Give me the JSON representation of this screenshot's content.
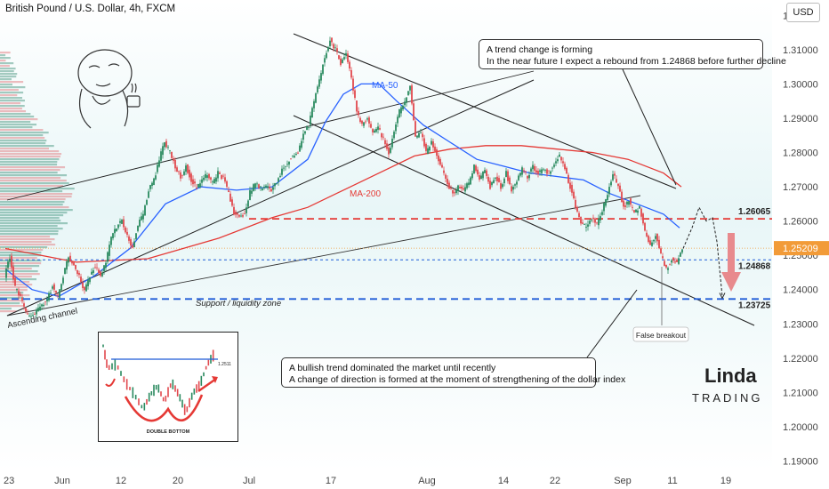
{
  "chart_data": {
    "type": "candlestick",
    "title": "British Pound / U.S. Dollar, 4h, FXCM",
    "currency": "USD",
    "x_ticks": [
      "23",
      "Jun",
      "12",
      "20",
      "Jul",
      "17",
      "Aug",
      "14",
      "22",
      "Sep",
      "11",
      "19"
    ],
    "y_ticks": [
      "1.32000",
      "1.31000",
      "1.30000",
      "1.29000",
      "1.28000",
      "1.27000",
      "1.26000",
      "1.25000",
      "1.24000",
      "1.23000",
      "1.22000",
      "1.21000",
      "1.20000",
      "1.19000"
    ],
    "ylim": [
      1.187,
      1.3245
    ],
    "current_price": "1.25209",
    "current_price_value": 1.25209,
    "levels": [
      {
        "label": "1.26065",
        "value": 1.26065,
        "style": "dashed",
        "color": "#e53935"
      },
      {
        "label": "1.24868",
        "value": 1.24868,
        "style": "dotted",
        "color": "#1e5bd8"
      },
      {
        "label": "1.23725",
        "value": 1.23725,
        "style": "dashed",
        "color": "#1e5bd8"
      }
    ],
    "ma_labels": {
      "ma50": "MA-50",
      "ma200": "MA-200"
    },
    "series": [
      {
        "name": "MA-50",
        "color": "#2962ff"
      },
      {
        "name": "MA-200",
        "color": "#e53935"
      }
    ],
    "ohlc_path": [
      [
        0,
        1.244
      ],
      [
        6,
        1.2495
      ],
      [
        12,
        1.2405
      ],
      [
        18,
        1.238
      ],
      [
        24,
        1.233
      ],
      [
        30,
        1.232
      ],
      [
        36,
        1.2335
      ],
      [
        42,
        1.2355
      ],
      [
        48,
        1.237
      ],
      [
        54,
        1.241
      ],
      [
        60,
        1.238
      ],
      [
        66,
        1.244
      ],
      [
        72,
        1.2495
      ],
      [
        78,
        1.247
      ],
      [
        84,
        1.244
      ],
      [
        90,
        1.2395
      ],
      [
        96,
        1.244
      ],
      [
        102,
        1.247
      ],
      [
        108,
        1.244
      ],
      [
        114,
        1.248
      ],
      [
        120,
        1.255
      ],
      [
        126,
        1.2585
      ],
      [
        132,
        1.26
      ],
      [
        138,
        1.256
      ],
      [
        144,
        1.252
      ],
      [
        150,
        1.259
      ],
      [
        156,
        1.262
      ],
      [
        162,
        1.269
      ],
      [
        168,
        1.272
      ],
      [
        174,
        1.278
      ],
      [
        180,
        1.283
      ],
      [
        186,
        1.28
      ],
      [
        192,
        1.276
      ],
      [
        198,
        1.273
      ],
      [
        204,
        1.276
      ],
      [
        210,
        1.272
      ],
      [
        216,
        1.2695
      ],
      [
        222,
        1.272
      ],
      [
        228,
        1.2735
      ],
      [
        234,
        1.271
      ],
      [
        240,
        1.274
      ],
      [
        246,
        1.2725
      ],
      [
        252,
        1.268
      ],
      [
        258,
        1.2625
      ],
      [
        264,
        1.261
      ],
      [
        270,
        1.262
      ],
      [
        276,
        1.2685
      ],
      [
        282,
        1.271
      ],
      [
        288,
        1.2695
      ],
      [
        294,
        1.27
      ],
      [
        300,
        1.269
      ],
      [
        306,
        1.2715
      ],
      [
        312,
        1.275
      ],
      [
        318,
        1.277
      ],
      [
        324,
        1.279
      ],
      [
        330,
        1.28
      ],
      [
        336,
        1.285
      ],
      [
        342,
        1.288
      ],
      [
        348,
        1.295
      ],
      [
        354,
        1.301
      ],
      [
        360,
        1.308
      ],
      [
        366,
        1.313
      ],
      [
        372,
        1.31
      ],
      [
        378,
        1.306
      ],
      [
        384,
        1.309
      ],
      [
        390,
        1.302
      ],
      [
        396,
        1.292
      ],
      [
        402,
        1.288
      ],
      [
        408,
        1.29
      ],
      [
        414,
        1.286
      ],
      [
        420,
        1.287
      ],
      [
        426,
        1.284
      ],
      [
        432,
        1.28
      ],
      [
        438,
        1.286
      ],
      [
        444,
        1.292
      ],
      [
        450,
        1.295
      ],
      [
        456,
        1.299
      ],
      [
        462,
        1.284
      ],
      [
        468,
        1.286
      ],
      [
        474,
        1.28
      ],
      [
        480,
        1.283
      ],
      [
        486,
        1.279
      ],
      [
        492,
        1.275
      ],
      [
        498,
        1.271
      ],
      [
        504,
        1.268
      ],
      [
        510,
        1.27
      ],
      [
        516,
        1.269
      ],
      [
        522,
        1.271
      ],
      [
        528,
        1.276
      ],
      [
        534,
        1.272
      ],
      [
        540,
        1.275
      ],
      [
        546,
        1.27
      ],
      [
        552,
        1.273
      ],
      [
        558,
        1.27
      ],
      [
        564,
        1.274
      ],
      [
        570,
        1.269
      ],
      [
        576,
        1.272
      ],
      [
        582,
        1.275
      ],
      [
        588,
        1.273
      ],
      [
        594,
        1.276
      ],
      [
        600,
        1.274
      ],
      [
        606,
        1.275
      ],
      [
        612,
        1.274
      ],
      [
        618,
        1.277
      ],
      [
        624,
        1.279
      ],
      [
        630,
        1.275
      ],
      [
        636,
        1.27
      ],
      [
        642,
        1.264
      ],
      [
        648,
        1.26
      ],
      [
        654,
        1.258
      ],
      [
        660,
        1.261
      ],
      [
        666,
        1.259
      ],
      [
        672,
        1.263
      ],
      [
        678,
        1.268
      ],
      [
        684,
        1.274
      ],
      [
        690,
        1.27
      ],
      [
        696,
        1.264
      ],
      [
        702,
        1.266
      ],
      [
        708,
        1.262
      ],
      [
        714,
        1.264
      ],
      [
        720,
        1.257
      ],
      [
        726,
        1.253
      ],
      [
        732,
        1.256
      ],
      [
        738,
        1.25
      ],
      [
        744,
        1.246
      ],
      [
        750,
        1.249
      ],
      [
        756,
        1.248
      ],
      [
        762,
        1.252
      ]
    ],
    "ma50_path": [
      [
        0,
        1.246
      ],
      [
        30,
        1.24
      ],
      [
        60,
        1.238
      ],
      [
        100,
        1.244
      ],
      [
        140,
        1.252
      ],
      [
        180,
        1.265
      ],
      [
        220,
        1.27
      ],
      [
        260,
        1.269
      ],
      [
        300,
        1.27
      ],
      [
        340,
        1.278
      ],
      [
        360,
        1.289
      ],
      [
        380,
        1.297
      ],
      [
        400,
        1.3
      ],
      [
        420,
        1.3
      ],
      [
        440,
        1.295
      ],
      [
        470,
        1.288
      ],
      [
        500,
        1.283
      ],
      [
        530,
        1.278
      ],
      [
        560,
        1.276
      ],
      [
        590,
        1.274
      ],
      [
        620,
        1.273
      ],
      [
        650,
        1.272
      ],
      [
        680,
        1.268
      ],
      [
        710,
        1.265
      ],
      [
        740,
        1.262
      ],
      [
        758,
        1.258
      ]
    ],
    "ma200_path": [
      [
        0,
        1.252
      ],
      [
        80,
        1.248
      ],
      [
        160,
        1.249
      ],
      [
        240,
        1.255
      ],
      [
        300,
        1.261
      ],
      [
        340,
        1.264
      ],
      [
        380,
        1.269
      ],
      [
        420,
        1.274
      ],
      [
        460,
        1.279
      ],
      [
        500,
        1.281
      ],
      [
        540,
        1.282
      ],
      [
        580,
        1.282
      ],
      [
        620,
        1.281
      ],
      [
        660,
        1.28
      ],
      [
        700,
        1.278
      ],
      [
        740,
        1.274
      ],
      [
        760,
        1.27
      ]
    ],
    "projection_path": [
      [
        762,
        1.252
      ],
      [
        772,
        1.258
      ],
      [
        780,
        1.264
      ],
      [
        788,
        1.26
      ],
      [
        795,
        1.261
      ],
      [
        800,
        1.254
      ],
      [
        806,
        1.238
      ]
    ],
    "ascending_channel_label": "Ascending channel",
    "support_label": "Support / liquidity zone",
    "false_breakout_label": "False breakout",
    "inset": {
      "level_label": "1.2511",
      "caption": "DOUBLE BOTTOM"
    },
    "annotations": {
      "top": [
        "A trend change is forming",
        "In the near future I expect a rebound from 1.24868 before further decline"
      ],
      "bottom": [
        "A bullish trend dominated the market until recently",
        "A change of direction is formed at the moment of strengthening of the dollar index"
      ]
    },
    "logo": {
      "line1": "Linda",
      "line2": "TRADING"
    },
    "grid": false
  }
}
